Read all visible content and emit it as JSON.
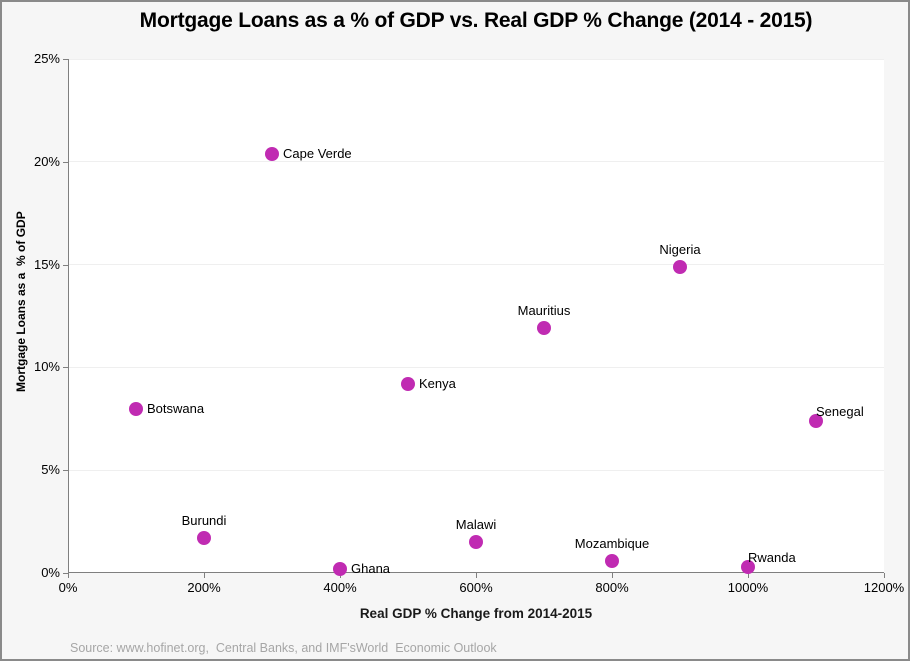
{
  "chart_data": {
    "type": "scatter",
    "title": "Mortgage Loans as a % of GDP vs. Real GDP % Change (2014 - 2015)",
    "xlabel": "Real GDP % Change from 2014-2015",
    "ylabel": "Mortgage Loans as a  % of GDP",
    "source": "Source: www.hofinet.org,  Central Banks, and IMF'sWorld  Economic Outlook",
    "xlim": [
      0,
      1200
    ],
    "ylim": [
      0,
      25
    ],
    "grid": "horizontal",
    "legend": "none",
    "marker_color": "#C02BB2",
    "xticks": [
      {
        "v": 0,
        "label": "0%"
      },
      {
        "v": 200,
        "label": "200%"
      },
      {
        "v": 400,
        "label": "400%"
      },
      {
        "v": 600,
        "label": "600%"
      },
      {
        "v": 800,
        "label": "800%"
      },
      {
        "v": 1000,
        "label": "1000%"
      },
      {
        "v": 1200,
        "label": "1200%"
      }
    ],
    "yticks": [
      {
        "v": 0,
        "label": "0%"
      },
      {
        "v": 5,
        "label": "5%"
      },
      {
        "v": 10,
        "label": "10%"
      },
      {
        "v": 15,
        "label": "15%"
      },
      {
        "v": 20,
        "label": "20%"
      },
      {
        "v": 25,
        "label": "25%"
      }
    ],
    "points": [
      {
        "label": "Botswana",
        "x": 100,
        "y": 8.0,
        "label_pos": "right"
      },
      {
        "label": "Burundi",
        "x": 200,
        "y": 1.7,
        "label_pos": "above"
      },
      {
        "label": "Cape Verde",
        "x": 300,
        "y": 20.4,
        "label_pos": "right"
      },
      {
        "label": "Ghana",
        "x": 400,
        "y": 0.2,
        "label_pos": "right"
      },
      {
        "label": "Kenya",
        "x": 500,
        "y": 9.2,
        "label_pos": "right"
      },
      {
        "label": "Malawi",
        "x": 600,
        "y": 1.5,
        "label_pos": "above"
      },
      {
        "label": "Mauritius",
        "x": 700,
        "y": 11.9,
        "label_pos": "above"
      },
      {
        "label": "Mozambique",
        "x": 800,
        "y": 0.6,
        "label_pos": "above"
      },
      {
        "label": "Nigeria",
        "x": 900,
        "y": 14.9,
        "label_pos": "above"
      },
      {
        "label": "Rwanda",
        "x": 1000,
        "y": 0.3,
        "label_pos": "above-right"
      },
      {
        "label": "Senegal",
        "x": 1100,
        "y": 7.4,
        "label_pos": "above-right"
      }
    ]
  }
}
